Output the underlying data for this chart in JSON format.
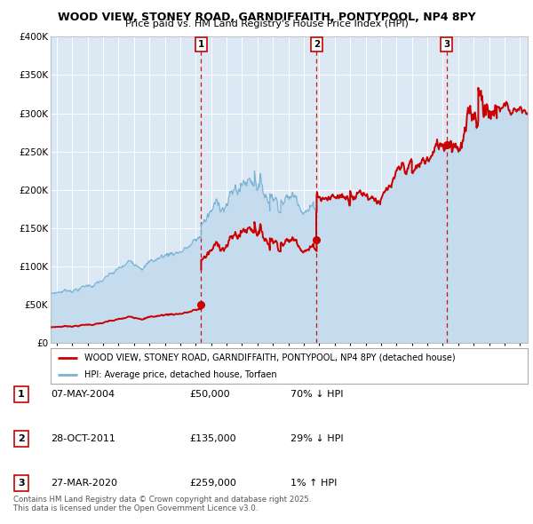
{
  "title": "WOOD VIEW, STONEY ROAD, GARNDIFFAITH, PONTYPOOL, NP4 8PY",
  "subtitle": "Price paid vs. HM Land Registry's House Price Index (HPI)",
  "bg_color": "#dce9f5",
  "hpi_color": "#7ab3d4",
  "hpi_fill_color": "#c5dcee",
  "price_color": "#cc0000",
  "sale1_date": 2004.35,
  "sale1_price": 50000,
  "sale2_date": 2011.83,
  "sale2_price": 135000,
  "sale3_date": 2020.24,
  "sale3_price": 259000,
  "ylabel_ticks": [
    "£0",
    "£50K",
    "£100K",
    "£150K",
    "£200K",
    "£250K",
    "£300K",
    "£350K",
    "£400K"
  ],
  "ytick_vals": [
    0,
    50000,
    100000,
    150000,
    200000,
    250000,
    300000,
    350000,
    400000
  ],
  "xmin": 1994.6,
  "xmax": 2025.5,
  "ymin": 0,
  "ymax": 400000,
  "legend1_label": "WOOD VIEW, STONEY ROAD, GARNDIFFAITH, PONTYPOOL, NP4 8PY (detached house)",
  "legend2_label": "HPI: Average price, detached house, Torfaen",
  "table_rows": [
    {
      "num": "1",
      "date": "07-MAY-2004",
      "price": "£50,000",
      "hpi": "70% ↓ HPI"
    },
    {
      "num": "2",
      "date": "28-OCT-2011",
      "price": "£135,000",
      "hpi": "29% ↓ HPI"
    },
    {
      "num": "3",
      "date": "27-MAR-2020",
      "price": "£259,000",
      "hpi": "1% ↑ HPI"
    }
  ],
  "footnote": "Contains HM Land Registry data © Crown copyright and database right 2025.\nThis data is licensed under the Open Government Licence v3.0."
}
